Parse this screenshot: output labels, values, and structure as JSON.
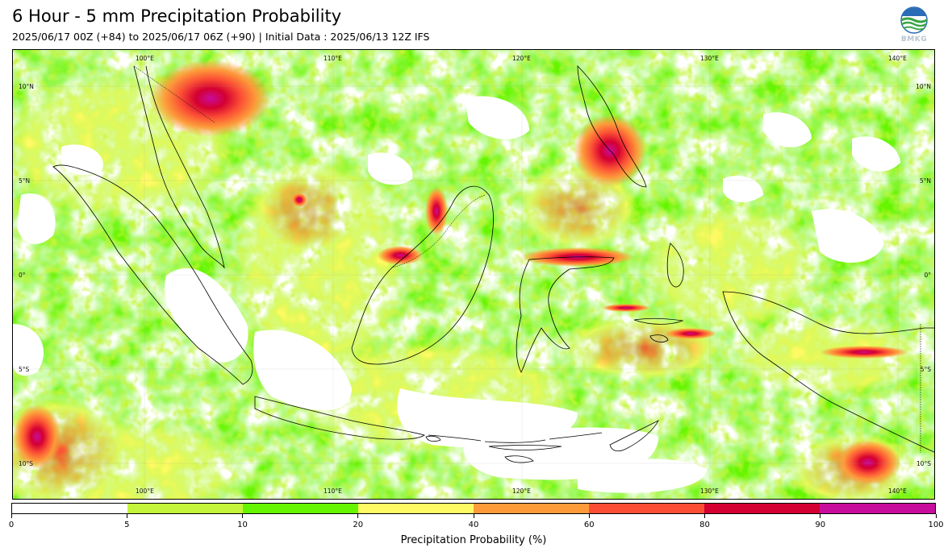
{
  "title": "6 Hour - 5 mm Precipitation Probability",
  "subtitle": "2025/06/17 00Z (+84) to 2025/06/17 06Z (+90) | Initial Data : 2025/06/13 12Z IFS",
  "logo": {
    "text": "BMKG",
    "icon": "bmkg-logo-icon"
  },
  "map": {
    "region": "Indonesia",
    "lon_labels_top": [
      "100°E",
      "110°E",
      "120°E",
      "130°E",
      "140°E"
    ],
    "lon_labels_bottom": [
      "100°E",
      "110°E",
      "120°E",
      "130°E",
      "140°E"
    ],
    "lat_labels_left": [
      "10°N",
      "5°N",
      "0°",
      "5°S",
      "10°S"
    ],
    "lat_labels_right": [
      "10°N",
      "5°N",
      "0°",
      "5°S",
      "10°S"
    ],
    "lon_range": [
      91,
      140.8
    ],
    "lat_range": [
      -12.3,
      11.7
    ]
  },
  "colorbar": {
    "title": "Precipitation Probability (%)",
    "ticks": [
      "0",
      "5",
      "10",
      "20",
      "40",
      "60",
      "80",
      "90",
      "100"
    ],
    "colors": [
      "#ffffff",
      "#c4f53a",
      "#66f500",
      "#fdfa64",
      "#fd9b3a",
      "#fb4e34",
      "#d40031",
      "#c80d9c"
    ]
  }
}
